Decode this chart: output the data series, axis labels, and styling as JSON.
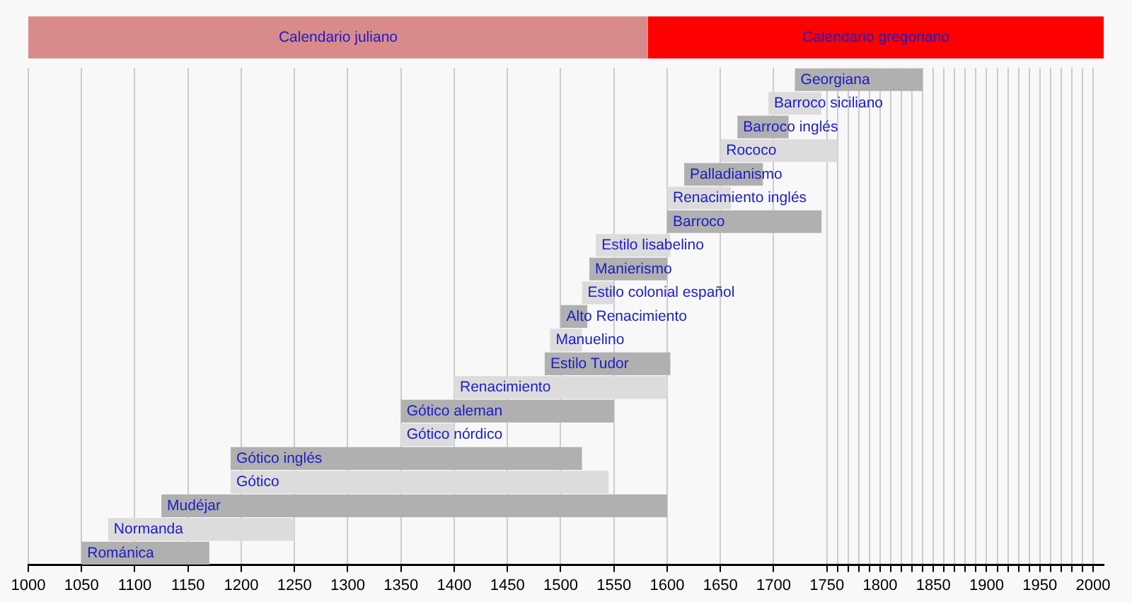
{
  "chart_data": [
    {
      "type": "bar",
      "orientation": "horizontal",
      "categories": [
        null
      ],
      "xlim": [
        1000,
        2010
      ],
      "tick_labels": false,
      "series": [
        {
          "name": "Calendario juliano",
          "color": "#d98a8a",
          "values": [
            582
          ],
          "base": [
            1000
          ]
        },
        {
          "name": "Calendario gregoriano",
          "color": "#ff0000",
          "values": [
            428
          ],
          "base": [
            1582
          ]
        }
      ]
    },
    {
      "type": "bar",
      "orientation": "horizontal",
      "xlim": [
        1000,
        2010
      ],
      "tick_labels": "x",
      "grid": "x",
      "categories": [
        "Georgiana",
        "Barroco siciliano",
        "Barroco inglés",
        "Rococo",
        "Palladianismo",
        "Renacimiento inglés",
        "Barroco",
        "Estilo lisabelino",
        "Manierismo",
        "Estilo colonial español",
        "Alto Renacimiento",
        "Manuelino",
        "Estilo Tudor",
        "Renacimiento",
        "Gótico aleman",
        "Gótico nórdico",
        "Gótico inglés",
        "Gótico",
        "Mudéjar",
        "Normanda",
        "Románica"
      ],
      "base": [
        1720,
        1695,
        1666,
        1650,
        1616,
        1600,
        1600,
        1533,
        1527,
        1520,
        1500,
        1490,
        1485,
        1400,
        1350,
        1350,
        1190,
        1190,
        1125,
        1075,
        1050
      ],
      "values": [
        120,
        50,
        48,
        110,
        74,
        60,
        145,
        70,
        73,
        30,
        25,
        30,
        118,
        200,
        200,
        50,
        330,
        355,
        475,
        175,
        120
      ],
      "colors": [
        "#b0b0b0",
        "#dcdcdc",
        "#b0b0b0",
        "#dcdcdc",
        "#b0b0b0",
        "#dcdcdc",
        "#b0b0b0",
        "#dcdcdc",
        "#b0b0b0",
        "#dcdcdc",
        "#b0b0b0",
        "#dcdcdc",
        "#b0b0b0",
        "#dcdcdc",
        "#b0b0b0",
        "#dcdcdc",
        "#b0b0b0",
        "#dcdcdc",
        "#b0b0b0",
        "#dcdcdc",
        "#b0b0b0"
      ],
      "xticks": [
        1000,
        1050,
        1100,
        1150,
        1200,
        1250,
        1300,
        1350,
        1400,
        1450,
        1500,
        1550,
        1600,
        1650,
        1700,
        1750,
        {
          "value": 1760,
          "label": null
        },
        {
          "value": 1770,
          "label": null
        },
        {
          "value": 1780,
          "label": null
        },
        {
          "value": 1790,
          "label": null
        },
        1800,
        {
          "value": 1810,
          "label": null
        },
        {
          "value": 1820,
          "label": null
        },
        {
          "value": 1830,
          "label": null
        },
        {
          "value": 1840,
          "label": null
        },
        1850,
        {
          "value": 1860,
          "label": null
        },
        {
          "value": 1870,
          "label": null
        },
        {
          "value": 1880,
          "label": null
        },
        {
          "value": 1890,
          "label": null
        },
        1900,
        {
          "value": 1910,
          "label": null
        },
        {
          "value": 1920,
          "label": null
        },
        {
          "value": 1930,
          "label": null
        },
        {
          "value": 1940,
          "label": null
        },
        1950,
        {
          "value": 1960,
          "label": null
        },
        {
          "value": 1970,
          "label": null
        },
        {
          "value": 1980,
          "label": null
        },
        {
          "value": 1990,
          "label": null
        },
        2000
      ]
    }
  ]
}
